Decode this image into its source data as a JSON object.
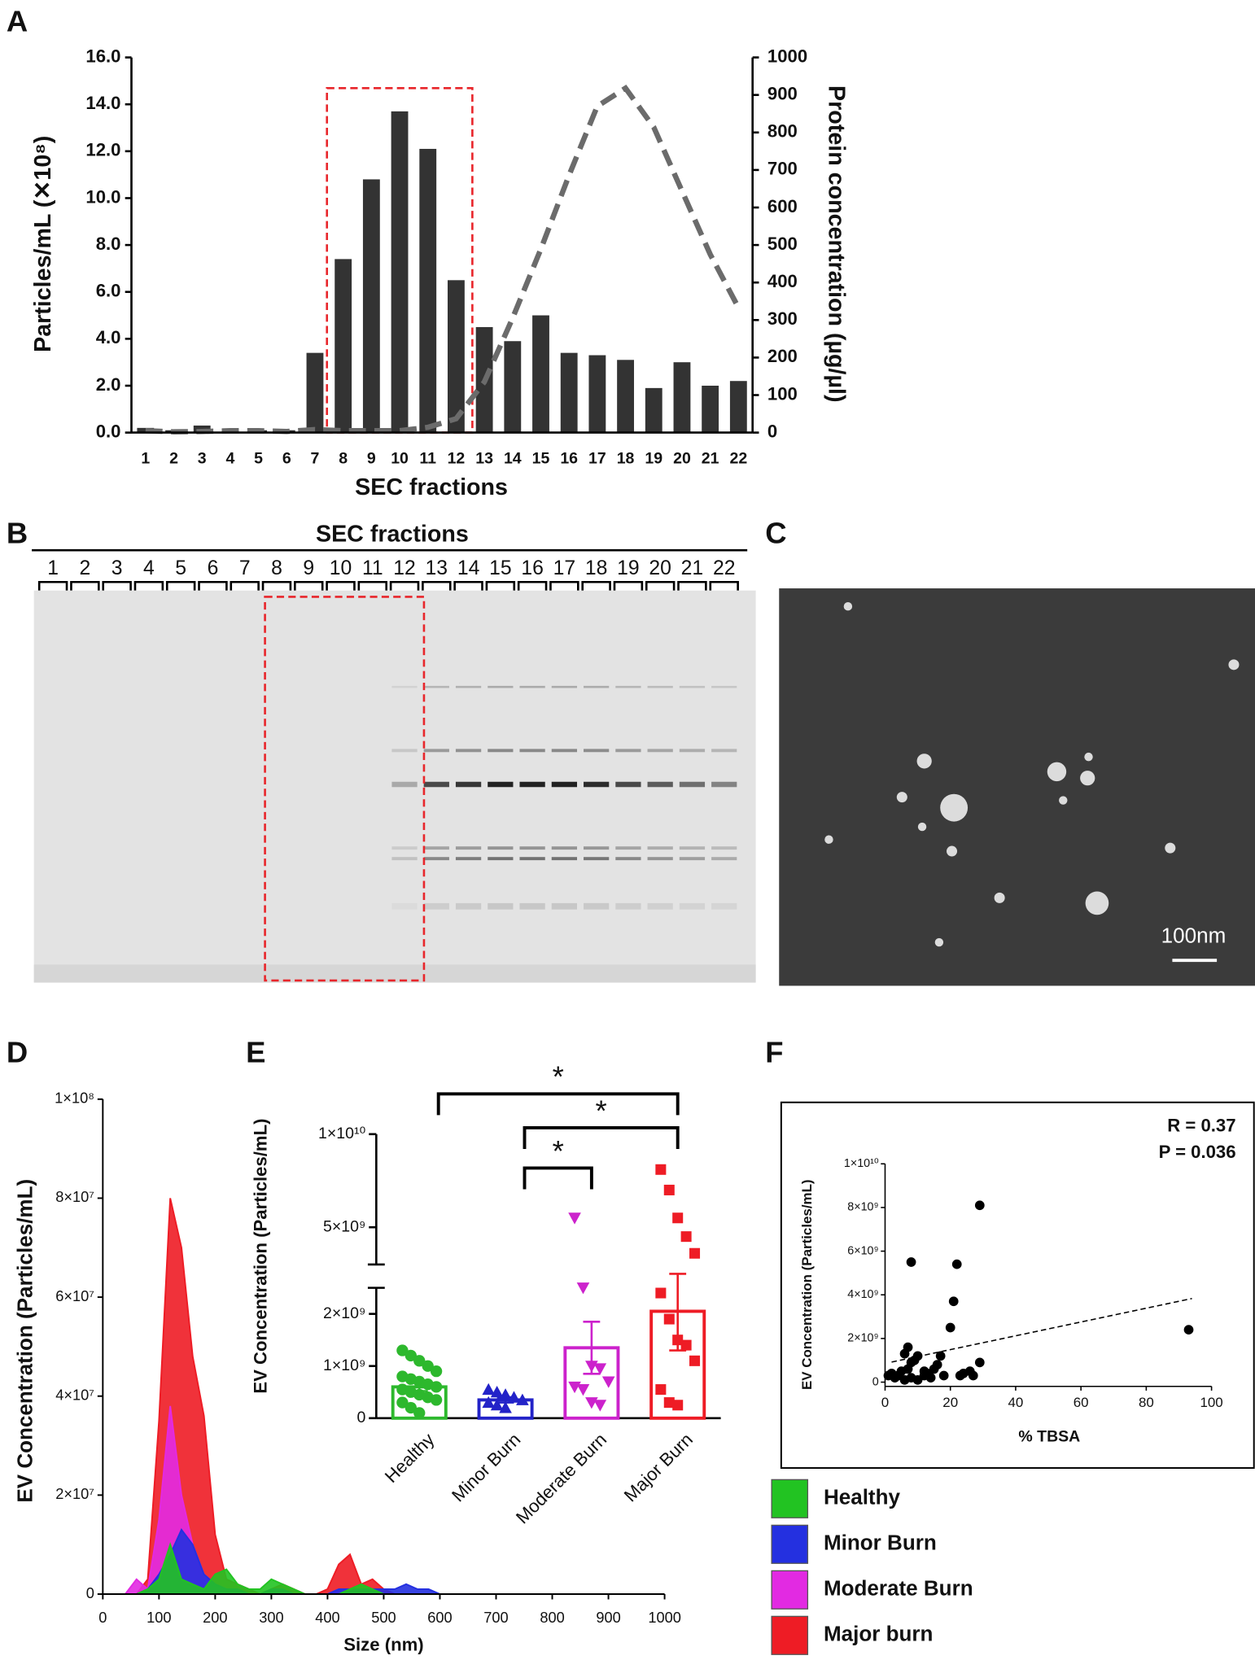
{
  "chart_data": [
    {
      "type": "bar_line",
      "panel": "A",
      "categories": [
        "1",
        "2",
        "3",
        "4",
        "5",
        "6",
        "7",
        "8",
        "9",
        "10",
        "11",
        "12",
        "13",
        "14",
        "15",
        "16",
        "17",
        "18",
        "19",
        "20",
        "21",
        "22"
      ],
      "xlabel": "SEC fractions",
      "ylabel": "Particles/mL (✕10⁸)",
      "y2label": "Protein concentration (µg/µl)",
      "series": [
        {
          "type": "bar",
          "color": "#333333",
          "values": [
            0.2,
            0.1,
            0.3,
            0.1,
            0.1,
            0.1,
            3.4,
            7.4,
            10.8,
            13.7,
            12.1,
            6.5,
            4.5,
            3.9,
            5.0,
            3.4,
            3.3,
            3.1,
            1.9,
            3.0,
            2.0,
            2.2
          ]
        },
        {
          "type": "line",
          "axis": "y2",
          "color": "#6b6b6b",
          "values": [
            5,
            2,
            3,
            5,
            5,
            3,
            8,
            5,
            5,
            5,
            14,
            37,
            135,
            305,
            489,
            686,
            870,
            918,
            814,
            644,
            475,
            333
          ]
        }
      ],
      "ylim": [
        0,
        16
      ],
      "yticks": [
        {
          "value": 0,
          "label": "0.0"
        },
        {
          "value": 2,
          "label": "2.0"
        },
        {
          "value": 4,
          "label": "4.0"
        },
        {
          "value": 6,
          "label": "6.0"
        },
        {
          "value": 8,
          "label": "8.0"
        },
        {
          "value": 10,
          "label": "10.0"
        },
        {
          "value": 12,
          "label": "12.0"
        },
        {
          "value": 14,
          "label": "14.0"
        },
        {
          "value": 16,
          "label": "16.0"
        }
      ],
      "y2lim": [
        0,
        1000
      ],
      "y2ticks": [
        0,
        100,
        200,
        300,
        400,
        500,
        600,
        700,
        800,
        900,
        1000
      ]
    },
    {
      "type": "gel",
      "panel": "B",
      "title": "SEC fractions",
      "categories": [
        "1",
        "2",
        "3",
        "4",
        "5",
        "6",
        "7",
        "8",
        "9",
        "10",
        "11",
        "12",
        "13",
        "14",
        "15",
        "16",
        "17",
        "18",
        "19",
        "20",
        "21",
        "22"
      ]
    },
    {
      "type": "micrograph",
      "panel": "C",
      "scale_bar": "100nm"
    },
    {
      "type": "area",
      "panel": "D",
      "xlabel": "Size (nm)",
      "ylabel": "EV Concentration (Particles/mL)",
      "x": [
        40,
        60,
        80,
        100,
        120,
        140,
        160,
        180,
        200,
        220,
        240,
        260,
        280,
        300,
        320,
        340,
        360,
        380,
        400,
        420,
        440,
        460,
        480,
        500,
        520,
        540,
        560,
        580,
        600,
        620
      ],
      "series": [
        {
          "name": "Healthy",
          "color": "#22c322",
          "values": [
            0,
            0,
            1000000.0,
            3000000.0,
            10000000.0,
            3000000.0,
            2000000.0,
            1000000.0,
            4000000.0,
            5000000.0,
            2000000.0,
            1000000.0,
            1000000.0,
            3000000.0,
            2000000.0,
            1000000.0,
            0,
            0,
            0,
            0,
            1000000.0,
            2000000.0,
            1000000.0,
            0,
            0,
            0,
            0,
            0,
            0,
            0
          ]
        },
        {
          "name": "Minor Burn",
          "color": "#2430e0",
          "values": [
            0,
            0,
            1000000.0,
            4000000.0,
            8000000.0,
            13000000.0,
            10000000.0,
            4000000.0,
            2000000.0,
            1000000.0,
            1000000.0,
            0,
            0,
            1000000.0,
            1000000.0,
            0,
            0,
            0,
            0,
            1000000.0,
            1000000.0,
            1000000.0,
            1000000.0,
            1000000.0,
            1000000.0,
            2000000.0,
            1000000.0,
            1000000.0,
            0,
            0
          ]
        },
        {
          "name": "Moderate Burn",
          "color": "#e22ae2",
          "values": [
            0,
            3000000.0,
            1000000.0,
            15000000.0,
            38000000.0,
            20000000.0,
            10000000.0,
            4000000.0,
            2000000.0,
            1000000.0,
            1000000.0,
            0,
            0,
            1000000.0,
            1000000.0,
            0,
            0,
            0,
            0,
            1000000.0,
            1000000.0,
            0,
            1000000.0,
            0,
            0,
            0,
            0,
            0,
            0,
            0
          ]
        },
        {
          "name": "Major burn",
          "color": "#ee1c25",
          "values": [
            0,
            0,
            3000000.0,
            35000000.0,
            80000000.0,
            70000000.0,
            48000000.0,
            36000000.0,
            12000000.0,
            3000000.0,
            2000000.0,
            1000000.0,
            0,
            1000000.0,
            2000000.0,
            1000000.0,
            0,
            0,
            1000000.0,
            6000000.0,
            8000000.0,
            2000000.0,
            3000000.0,
            1000000.0,
            0,
            0,
            0,
            0,
            0,
            0
          ]
        }
      ],
      "xlim": [
        0,
        1000
      ],
      "xticks": [
        0,
        100,
        200,
        300,
        400,
        500,
        600,
        700,
        800,
        900,
        1000
      ],
      "ylim": [
        0,
        100000000.0
      ],
      "yticks": [
        0,
        {
          "value": 20000000.0,
          "label": "2×10⁷"
        },
        {
          "value": 40000000.0,
          "label": "4×10⁷"
        },
        {
          "value": 60000000.0,
          "label": "6×10⁷"
        },
        {
          "value": 80000000.0,
          "label": "8×10⁷"
        },
        {
          "value": 100000000.0,
          "label": "1×10⁸"
        }
      ]
    },
    {
      "type": "dot_bar",
      "panel": "E",
      "ylabel": "EV Concentration (Particles/mL)",
      "categories": [
        "Healthy",
        "Minor Burn",
        "Moderate Burn",
        "Major Burn"
      ],
      "colors": [
        "#2db82d",
        "#2323c8",
        "#cc22cc",
        "#ee1c25"
      ],
      "markers": [
        "circle",
        "triangle-up",
        "triangle-down",
        "square"
      ],
      "means": [
        600000000.0,
        350000000.0,
        1350000000.0,
        2050000000.0
      ],
      "errors": [
        80000000.0,
        50000000.0,
        500000000.0,
        750000000.0
      ],
      "points": [
        [
          1300000000.0,
          1200000000.0,
          1100000000.0,
          1000000000.0,
          900000000.0,
          800000000.0,
          750000000.0,
          700000000.0,
          650000000.0,
          600000000.0,
          550000000.0,
          500000000.0,
          450000000.0,
          400000000.0,
          350000000.0,
          300000000.0,
          200000000.0,
          100000000.0
        ],
        [
          550000000.0,
          500000000.0,
          450000000.0,
          400000000.0,
          350000000.0,
          300000000.0,
          250000000.0,
          200000000.0
        ],
        [
          5500000000.0,
          2500000000.0,
          1000000000.0,
          950000000.0,
          700000000.0,
          600000000.0,
          550000000.0,
          300000000.0,
          250000000.0
        ],
        [
          8100000000.0,
          7000000000.0,
          5500000000.0,
          4500000000.0,
          3600000000.0,
          2400000000.0,
          1900000000.0,
          1500000000.0,
          1400000000.0,
          1100000000.0,
          550000000.0,
          300000000.0,
          250000000.0
        ]
      ],
      "ylim": [
        0,
        10000000000.0
      ],
      "axis_break": [
        2500000000.0,
        3000000000.0
      ],
      "yticks": [
        0,
        {
          "value": 1000000000.0,
          "label": "1×10⁹"
        },
        {
          "value": 2000000000.0,
          "label": "2×10⁹"
        },
        {
          "value": 5000000000.0,
          "label": "5×10⁹"
        },
        {
          "value": 10000000000.0,
          "label": "1×10¹⁰"
        }
      ],
      "significance_labels": [
        "*",
        "*",
        "*"
      ]
    },
    {
      "type": "scatter",
      "panel": "F",
      "xlabel": "% TBSA",
      "ylabel": "EV Concentration (Particles/mL)",
      "annotations": [
        "R = 0.37",
        "P = 0.036"
      ],
      "x": [
        8,
        22,
        29,
        21,
        20,
        93,
        29,
        26,
        24,
        27,
        23,
        17,
        15,
        13,
        12,
        10,
        8,
        9,
        7,
        6,
        5,
        4,
        3,
        2,
        1,
        6,
        8,
        10,
        12,
        14,
        16,
        18,
        7
      ],
      "values": [
        5500000000.0,
        5400000000.0,
        8100000000.0,
        3700000000.0,
        2500000000.0,
        2400000000.0,
        900000000.0,
        500000000.0,
        400000000.0,
        300000000.0,
        300000000.0,
        1200000000.0,
        600000000.0,
        400000000.0,
        300000000.0,
        1200000000.0,
        900000000.0,
        1000000000.0,
        1600000000.0,
        1300000000.0,
        500000000.0,
        300000000.0,
        200000000.0,
        400000000.0,
        300000000.0,
        100000000.0,
        200000000.0,
        100000000.0,
        500000000.0,
        200000000.0,
        800000000.0,
        300000000.0,
        600000000.0
      ],
      "trendline": {
        "x": [
          2,
          94
        ],
        "values": [
          920000000.0,
          3830000000.0
        ]
      },
      "xlim": [
        0,
        100
      ],
      "xticks": [
        0,
        20,
        40,
        60,
        80,
        100
      ],
      "ylim": [
        0,
        10000000000.0
      ],
      "yticks": [
        0,
        {
          "value": 2000000000.0,
          "label": "2×10⁹"
        },
        {
          "value": 4000000000.0,
          "label": "4×10⁹"
        },
        {
          "value": 6000000000.0,
          "label": "6×10⁹"
        },
        {
          "value": 8000000000.0,
          "label": "8×10⁹"
        },
        {
          "value": 10000000000.0,
          "label": "1×10¹⁰"
        }
      ]
    }
  ]
}
